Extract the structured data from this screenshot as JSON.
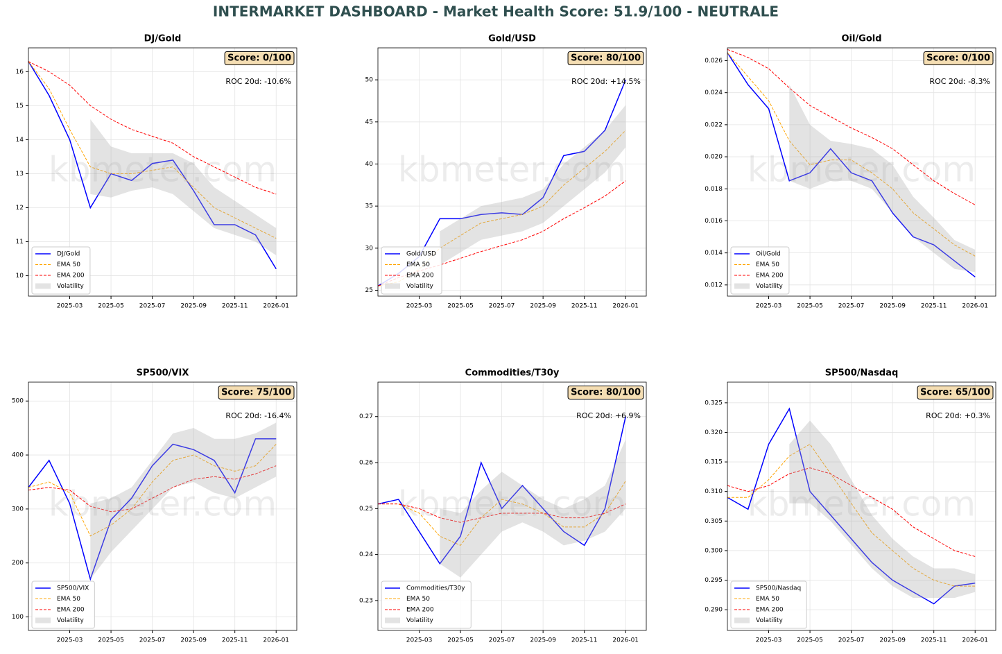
{
  "title": "INTERMARKET DASHBOARD - Market Health Score: 51.9/100 - NEUTRALE",
  "chart_data": [
    {
      "type": "line",
      "title": "DJ/Gold",
      "score": "Score: 0/100",
      "roc": "ROC 20d: -10.6%",
      "watermark": "kbmeter.com",
      "grid": true,
      "legend": "lower left",
      "x": [
        "2025-01",
        "2025-02",
        "2025-03",
        "2025-04",
        "2025-05",
        "2025-06",
        "2025-07",
        "2025-08",
        "2025-09",
        "2025-10",
        "2025-11",
        "2025-12",
        "2026-01"
      ],
      "xlim": [
        "2025-01",
        "2026-02"
      ],
      "xticks": [
        "2025-03",
        "2025-05",
        "2025-07",
        "2025-09",
        "2025-11",
        "2026-01"
      ],
      "ylim": [
        9.4,
        16.7
      ],
      "yticks": [
        10,
        11,
        12,
        13,
        14,
        15,
        16
      ],
      "series": [
        {
          "name": "DJ/Gold",
          "color": "#0000ff",
          "values": [
            16.3,
            15.3,
            14.0,
            12.0,
            13.0,
            12.8,
            13.3,
            13.4,
            12.5,
            11.5,
            11.5,
            11.2,
            10.2
          ]
        },
        {
          "name": "EMA 50",
          "color": "#ffa500",
          "values": [
            16.3,
            15.5,
            14.3,
            13.2,
            13.0,
            13.0,
            13.1,
            13.2,
            12.6,
            12.0,
            11.7,
            11.4,
            11.1
          ]
        },
        {
          "name": "EMA 200",
          "color": "#ff0000",
          "values": [
            16.3,
            16.0,
            15.6,
            15.0,
            14.6,
            14.3,
            14.1,
            13.9,
            13.5,
            13.2,
            12.9,
            12.6,
            12.4
          ]
        },
        {
          "name": "Volatility",
          "color": "#b0b0b0",
          "lower": [
            null,
            null,
            null,
            12.4,
            12.3,
            12.5,
            12.6,
            12.4,
            11.9,
            11.4,
            11.2,
            11.0,
            10.6
          ],
          "upper": [
            null,
            null,
            null,
            14.6,
            13.8,
            13.6,
            13.6,
            13.6,
            13.3,
            12.6,
            12.2,
            11.8,
            11.4
          ]
        }
      ]
    },
    {
      "type": "line",
      "title": "Gold/USD",
      "score": "Score: 80/100",
      "roc": "ROC 20d: +14.5%",
      "watermark": "kbmeter.com",
      "grid": true,
      "legend": "lower left",
      "x": [
        "2025-01",
        "2025-02",
        "2025-03",
        "2025-04",
        "2025-05",
        "2025-06",
        "2025-07",
        "2025-08",
        "2025-09",
        "2025-10",
        "2025-11",
        "2025-12",
        "2026-01"
      ],
      "xlim": [
        "2025-01",
        "2026-02"
      ],
      "xticks": [
        "2025-03",
        "2025-05",
        "2025-07",
        "2025-09",
        "2025-11",
        "2026-01"
      ],
      "ylim": [
        24.3,
        53.8
      ],
      "yticks": [
        25,
        30,
        35,
        40,
        45,
        50
      ],
      "series": [
        {
          "name": "Gold/USD",
          "color": "#0000ff",
          "values": [
            25.5,
            27,
            29,
            33.5,
            33.5,
            34,
            34.2,
            34,
            36,
            41,
            41.5,
            44,
            50
          ]
        },
        {
          "name": "EMA 50",
          "color": "#ffa500",
          "values": [
            25.5,
            26,
            27.5,
            30,
            31.5,
            33,
            33.5,
            34,
            35,
            37.5,
            39.5,
            41.5,
            44
          ]
        },
        {
          "name": "EMA 200",
          "color": "#ff0000",
          "values": [
            25.5,
            26.5,
            27.3,
            28,
            28.8,
            29.6,
            30.3,
            31,
            32,
            33.5,
            34.8,
            36.2,
            38
          ]
        },
        {
          "name": "Volatility",
          "color": "#b0b0b0",
          "lower": [
            null,
            null,
            null,
            28,
            29.5,
            31,
            31.5,
            32,
            33,
            35,
            37,
            39,
            42
          ],
          "upper": [
            null,
            null,
            null,
            32,
            33.5,
            35,
            35.5,
            36,
            37,
            40,
            42,
            44,
            47
          ]
        }
      ]
    },
    {
      "type": "line",
      "title": "Oil/Gold",
      "score": "Score: 0/100",
      "roc": "ROC 20d: -8.3%",
      "watermark": "kbmeter.com",
      "grid": true,
      "legend": "lower left",
      "x": [
        "2025-01",
        "2025-02",
        "2025-03",
        "2025-04",
        "2025-05",
        "2025-06",
        "2025-07",
        "2025-08",
        "2025-09",
        "2025-10",
        "2025-11",
        "2025-12",
        "2026-01"
      ],
      "xlim": [
        "2025-01",
        "2026-02"
      ],
      "xticks": [
        "2025-03",
        "2025-05",
        "2025-07",
        "2025-09",
        "2025-11",
        "2026-01"
      ],
      "ylim": [
        0.0113,
        0.0268
      ],
      "yticks": [
        {
          "value": 0.012,
          "label": "0.012"
        },
        {
          "value": 0.014,
          "label": "0.014"
        },
        {
          "value": 0.016,
          "label": "0.016"
        },
        {
          "value": 0.018,
          "label": "0.018"
        },
        {
          "value": 0.02,
          "label": "0.020"
        },
        {
          "value": 0.022,
          "label": "0.022"
        },
        {
          "value": 0.024,
          "label": "0.024"
        },
        {
          "value": 0.026,
          "label": "0.026"
        }
      ],
      "series": [
        {
          "name": "Oil/Gold",
          "color": "#0000ff",
          "values": [
            0.0265,
            0.0245,
            0.023,
            0.0185,
            0.019,
            0.0205,
            0.019,
            0.0185,
            0.0165,
            0.015,
            0.0145,
            0.0135,
            0.0125
          ]
        },
        {
          "name": "EMA 50",
          "color": "#ffa500",
          "values": [
            0.0265,
            0.025,
            0.0235,
            0.021,
            0.0195,
            0.0198,
            0.0198,
            0.019,
            0.018,
            0.0165,
            0.0155,
            0.0145,
            0.0138
          ]
        },
        {
          "name": "EMA 200",
          "color": "#ff0000",
          "values": [
            0.0267,
            0.0262,
            0.0255,
            0.0243,
            0.0232,
            0.0225,
            0.0218,
            0.0212,
            0.0205,
            0.0195,
            0.0185,
            0.0177,
            0.017
          ]
        },
        {
          "name": "Volatility",
          "color": "#b0b0b0",
          "lower": [
            null,
            null,
            null,
            0.0185,
            0.018,
            0.0185,
            0.0185,
            0.018,
            0.0165,
            0.015,
            0.014,
            0.013,
            0.0128
          ],
          "upper": [
            null,
            null,
            null,
            0.0245,
            0.022,
            0.021,
            0.0208,
            0.0205,
            0.0195,
            0.0175,
            0.0162,
            0.0148,
            0.0142
          ]
        }
      ]
    },
    {
      "type": "line",
      "title": "SP500/VIX",
      "score": "Score: 75/100",
      "roc": "ROC 20d: -16.4%",
      "watermark": "kbmeter.com",
      "grid": true,
      "legend": "lower left",
      "x": [
        "2025-01",
        "2025-02",
        "2025-03",
        "2025-04",
        "2025-05",
        "2025-06",
        "2025-07",
        "2025-08",
        "2025-09",
        "2025-10",
        "2025-11",
        "2025-12",
        "2026-01"
      ],
      "xlim": [
        "2025-01",
        "2026-02"
      ],
      "xticks": [
        "2025-03",
        "2025-05",
        "2025-07",
        "2025-09",
        "2025-11",
        "2026-01"
      ],
      "ylim": [
        75,
        535
      ],
      "yticks": [
        100,
        200,
        300,
        400,
        500
      ],
      "series": [
        {
          "name": "SP500/VIX",
          "color": "#0000ff",
          "values": [
            340,
            390,
            310,
            170,
            280,
            320,
            380,
            420,
            410,
            390,
            330,
            430,
            430
          ]
        },
        {
          "name": "EMA 50",
          "color": "#ffa500",
          "values": [
            340,
            350,
            330,
            250,
            270,
            300,
            350,
            390,
            400,
            380,
            370,
            380,
            420
          ]
        },
        {
          "name": "EMA 200",
          "color": "#ff0000",
          "values": [
            335,
            340,
            335,
            305,
            295,
            300,
            320,
            340,
            355,
            360,
            355,
            365,
            380
          ]
        },
        {
          "name": "Volatility",
          "color": "#b0b0b0",
          "lower": [
            null,
            null,
            null,
            170,
            220,
            260,
            300,
            340,
            350,
            330,
            320,
            340,
            360
          ],
          "upper": [
            null,
            null,
            null,
            310,
            320,
            340,
            390,
            440,
            450,
            430,
            430,
            440,
            460
          ]
        }
      ]
    },
    {
      "type": "line",
      "title": "Commodities/T30y",
      "score": "Score: 80/100",
      "roc": "ROC 20d: +6.9%",
      "watermark": "kbmeter.com",
      "grid": true,
      "legend": "lower left",
      "x": [
        "2025-01",
        "2025-02",
        "2025-03",
        "2025-04",
        "2025-05",
        "2025-06",
        "2025-07",
        "2025-08",
        "2025-09",
        "2025-10",
        "2025-11",
        "2025-12",
        "2026-01"
      ],
      "xlim": [
        "2025-01",
        "2026-02"
      ],
      "xticks": [
        "2025-03",
        "2025-05",
        "2025-07",
        "2025-09",
        "2025-11",
        "2026-01"
      ],
      "ylim": [
        0.2235,
        0.2775
      ],
      "yticks": [
        {
          "value": 0.23,
          "label": "0.23"
        },
        {
          "value": 0.24,
          "label": "0.24"
        },
        {
          "value": 0.25,
          "label": "0.25"
        },
        {
          "value": 0.26,
          "label": "0.26"
        },
        {
          "value": 0.27,
          "label": "0.27"
        }
      ],
      "series": [
        {
          "name": "Commodities/T30y",
          "color": "#0000ff",
          "values": [
            0.251,
            0.252,
            0.245,
            0.238,
            0.244,
            0.26,
            0.25,
            0.255,
            0.25,
            0.245,
            0.242,
            0.25,
            0.27
          ]
        },
        {
          "name": "EMA 50",
          "color": "#ffa500",
          "values": [
            0.251,
            0.251,
            0.249,
            0.244,
            0.242,
            0.248,
            0.252,
            0.251,
            0.249,
            0.246,
            0.246,
            0.249,
            0.256
          ]
        },
        {
          "name": "EMA 200",
          "color": "#ff0000",
          "values": [
            0.251,
            0.251,
            0.25,
            0.248,
            0.247,
            0.248,
            0.249,
            0.249,
            0.249,
            0.248,
            0.248,
            0.249,
            0.251
          ]
        },
        {
          "name": "Volatility",
          "color": "#b0b0b0",
          "lower": [
            null,
            null,
            null,
            0.238,
            0.235,
            0.24,
            0.245,
            0.247,
            0.245,
            0.242,
            0.243,
            0.245,
            0.25
          ],
          "upper": [
            null,
            null,
            null,
            0.25,
            0.249,
            0.254,
            0.258,
            0.255,
            0.252,
            0.25,
            0.252,
            0.255,
            0.265
          ]
        }
      ]
    },
    {
      "type": "line",
      "title": "SP500/Nasdaq",
      "score": "Score: 65/100",
      "roc": "ROC 20d: +0.3%",
      "watermark": "kbmeter.com",
      "grid": true,
      "legend": "lower left",
      "x": [
        "2025-01",
        "2025-02",
        "2025-03",
        "2025-04",
        "2025-05",
        "2025-06",
        "2025-07",
        "2025-08",
        "2025-09",
        "2025-10",
        "2025-11",
        "2025-12",
        "2026-01"
      ],
      "xlim": [
        "2025-01",
        "2026-02"
      ],
      "xticks": [
        "2025-03",
        "2025-05",
        "2025-07",
        "2025-09",
        "2025-11",
        "2026-01"
      ],
      "ylim": [
        0.2865,
        0.3285
      ],
      "yticks": [
        {
          "value": 0.29,
          "label": "0.290"
        },
        {
          "value": 0.295,
          "label": "0.295"
        },
        {
          "value": 0.3,
          "label": "0.300"
        },
        {
          "value": 0.305,
          "label": "0.305"
        },
        {
          "value": 0.31,
          "label": "0.310"
        },
        {
          "value": 0.315,
          "label": "0.315"
        },
        {
          "value": 0.32,
          "label": "0.320"
        },
        {
          "value": 0.325,
          "label": "0.325"
        }
      ],
      "series": [
        {
          "name": "SP500/Nasdaq",
          "color": "#0000ff",
          "values": [
            0.309,
            0.307,
            0.318,
            0.324,
            0.31,
            0.306,
            0.302,
            0.298,
            0.295,
            0.293,
            0.291,
            0.294,
            0.2945
          ]
        },
        {
          "name": "EMA 50",
          "color": "#ffa500",
          "values": [
            0.309,
            0.309,
            0.312,
            0.316,
            0.318,
            0.313,
            0.308,
            0.303,
            0.3,
            0.297,
            0.295,
            0.294,
            0.294
          ]
        },
        {
          "name": "EMA 200",
          "color": "#ff0000",
          "values": [
            0.311,
            0.31,
            0.311,
            0.313,
            0.314,
            0.313,
            0.311,
            0.309,
            0.307,
            0.304,
            0.302,
            0.3,
            0.299
          ]
        },
        {
          "name": "Volatility",
          "color": "#b0b0b0",
          "lower": [
            null,
            null,
            null,
            0.308,
            0.308,
            0.305,
            0.301,
            0.297,
            0.294,
            0.292,
            0.292,
            0.292,
            0.293
          ],
          "upper": [
            null,
            null,
            null,
            0.318,
            0.322,
            0.318,
            0.312,
            0.306,
            0.302,
            0.299,
            0.297,
            0.297,
            0.296
          ]
        }
      ]
    }
  ]
}
